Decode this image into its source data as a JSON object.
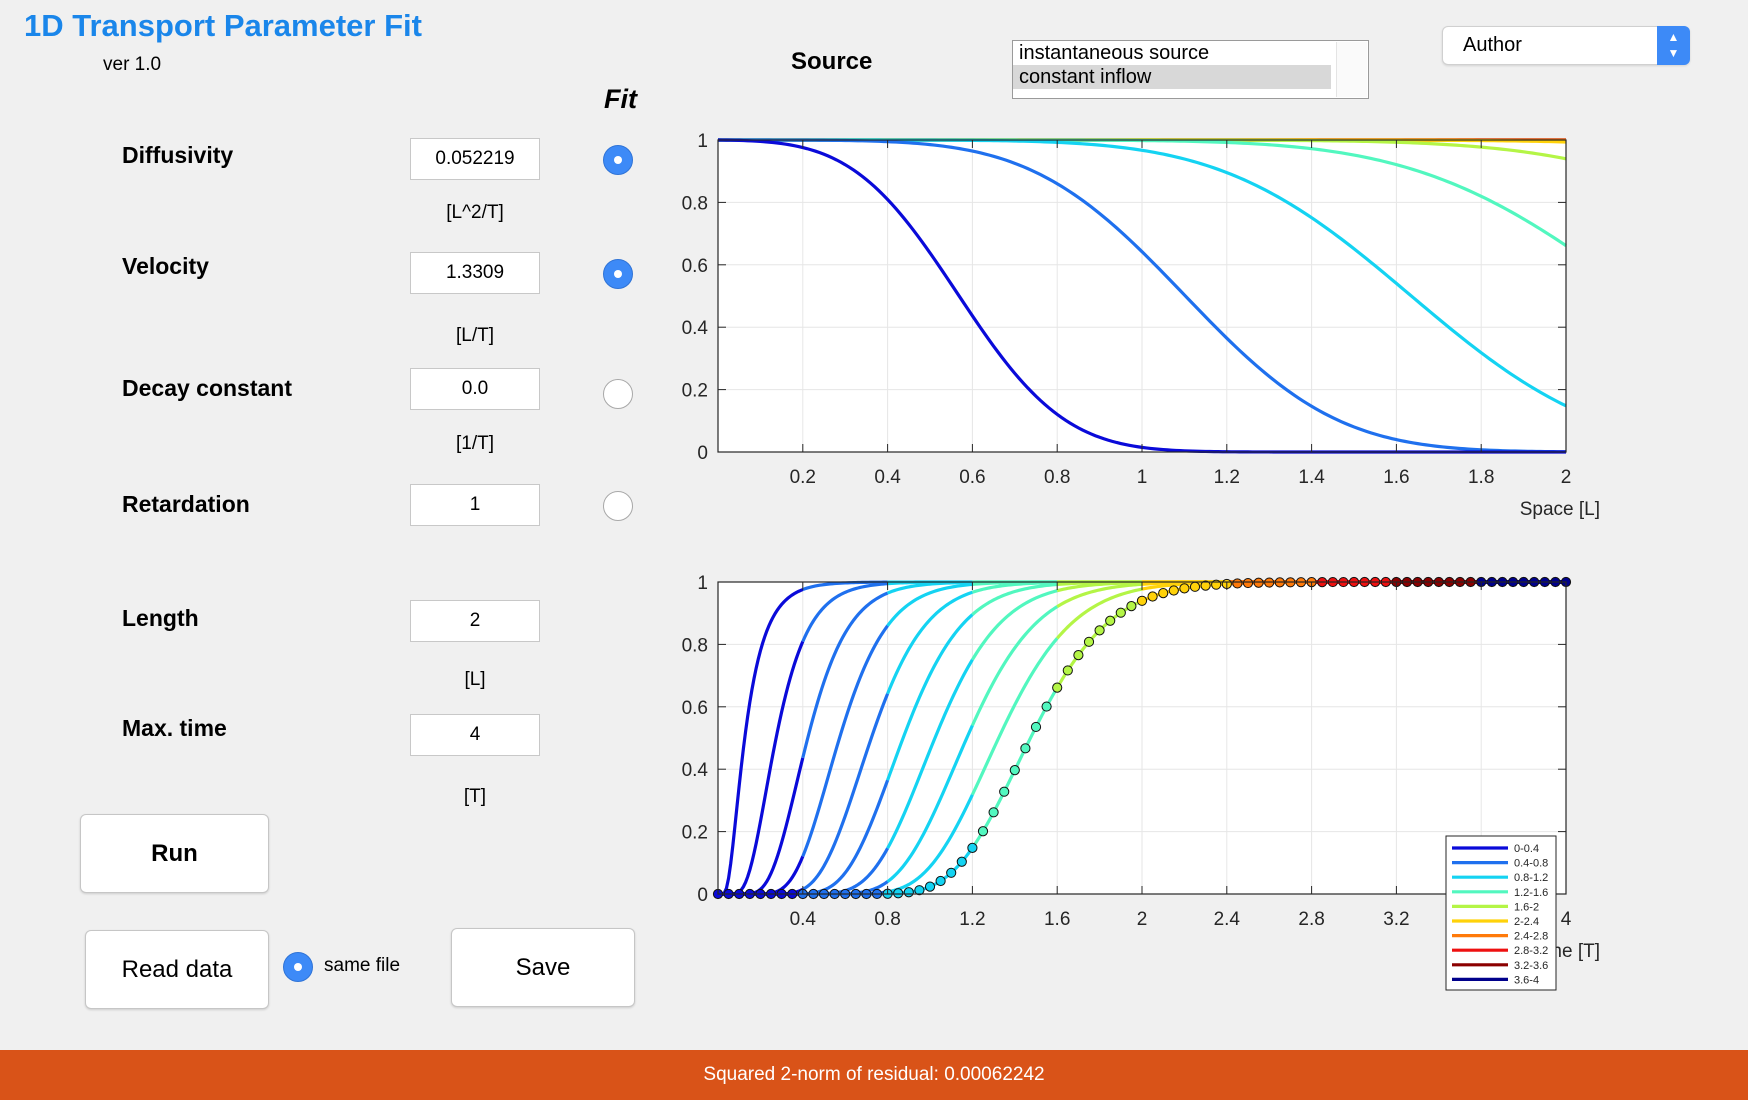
{
  "app": {
    "title": "1D Transport Parameter Fit",
    "version": "ver 1.0"
  },
  "fit_header": "Fit",
  "parameters": [
    {
      "label": "Diffusivity",
      "value": "0.052219",
      "unit": "[L^2/T]",
      "fit": true
    },
    {
      "label": "Velocity",
      "value": "1.3309",
      "unit": "[L/T]",
      "fit": true
    },
    {
      "label": "Decay constant",
      "value": "0.0",
      "unit": "[1/T]",
      "fit": false
    },
    {
      "label": "Retardation",
      "value": "1",
      "unit": "",
      "fit": false
    },
    {
      "label": "Length",
      "value": "2",
      "unit": "[L]"
    },
    {
      "label": "Max. time",
      "value": "4",
      "unit": "[T]"
    }
  ],
  "buttons": {
    "run": "Run",
    "read_data": "Read data",
    "save": "Save"
  },
  "same_file": {
    "label": "same file",
    "checked": true
  },
  "source": {
    "label": "Source",
    "options": [
      "instantaneous source",
      "constant inflow"
    ],
    "selected": "constant inflow"
  },
  "author_popup": {
    "value": "Author"
  },
  "status": "Squared 2-norm of residual: 0.00062242",
  "colors": {
    "title": "#1a86ea",
    "status_bar": "#d95318",
    "radio_on": "#3d8af7",
    "series": [
      "#0a0ad9",
      "#1f70ee",
      "#14d3f2",
      "#52f7bf",
      "#b4f546",
      "#ffd20a",
      "#ff7a0a",
      "#ee1010",
      "#8b0000",
      "#00008b"
    ]
  },
  "chart_data": [
    {
      "type": "line",
      "description": "concentration profiles in space at successive times",
      "xlabel": "Space [L]",
      "xlim": [
        0,
        2
      ],
      "ylim": [
        0,
        1
      ],
      "xticks": [
        "0.2",
        "0.4",
        "0.6",
        "0.8",
        "1",
        "1.2",
        "1.4",
        "1.6",
        "1.8",
        "2"
      ],
      "yticks": [
        "0",
        "0.2",
        "0.4",
        "0.6",
        "0.8",
        "1"
      ],
      "grid": true,
      "model": {
        "diffusivity": 0.052219,
        "velocity": 1.3309
      },
      "series": [
        {
          "t": 0.4
        },
        {
          "t": 0.8
        },
        {
          "t": 1.2
        },
        {
          "t": 1.6
        },
        {
          "t": 2.0
        },
        {
          "t": 2.4
        },
        {
          "t": 2.8
        },
        {
          "t": 3.2
        },
        {
          "t": 3.6
        },
        {
          "t": 4.0
        }
      ]
    },
    {
      "type": "line",
      "description": "breakthrough curves in time at successive positions, with observed data points",
      "xlabel": "Time [T]",
      "xlim": [
        0,
        4
      ],
      "ylim": [
        0,
        1
      ],
      "xticks": [
        "0.4",
        "0.8",
        "1.2",
        "1.6",
        "2",
        "2.4",
        "2.8",
        "3.2",
        "3.6",
        "4"
      ],
      "yticks": [
        "0",
        "0.2",
        "0.4",
        "0.6",
        "0.8",
        "1"
      ],
      "grid": true,
      "positions": [
        0.2,
        0.4,
        0.6,
        0.8,
        1.0,
        1.2,
        1.4,
        1.6,
        1.8,
        2.0
      ],
      "legend": [
        "0-0.4",
        "0.4-0.8",
        "0.8-1.2",
        "1.2-1.6",
        "1.6-2",
        "2-2.4",
        "2.4-2.8",
        "2.8-3.2",
        "3.2-3.6",
        "3.6-4"
      ],
      "legend_position": "right",
      "observed_position": 2.0,
      "observed_points": 81
    }
  ]
}
